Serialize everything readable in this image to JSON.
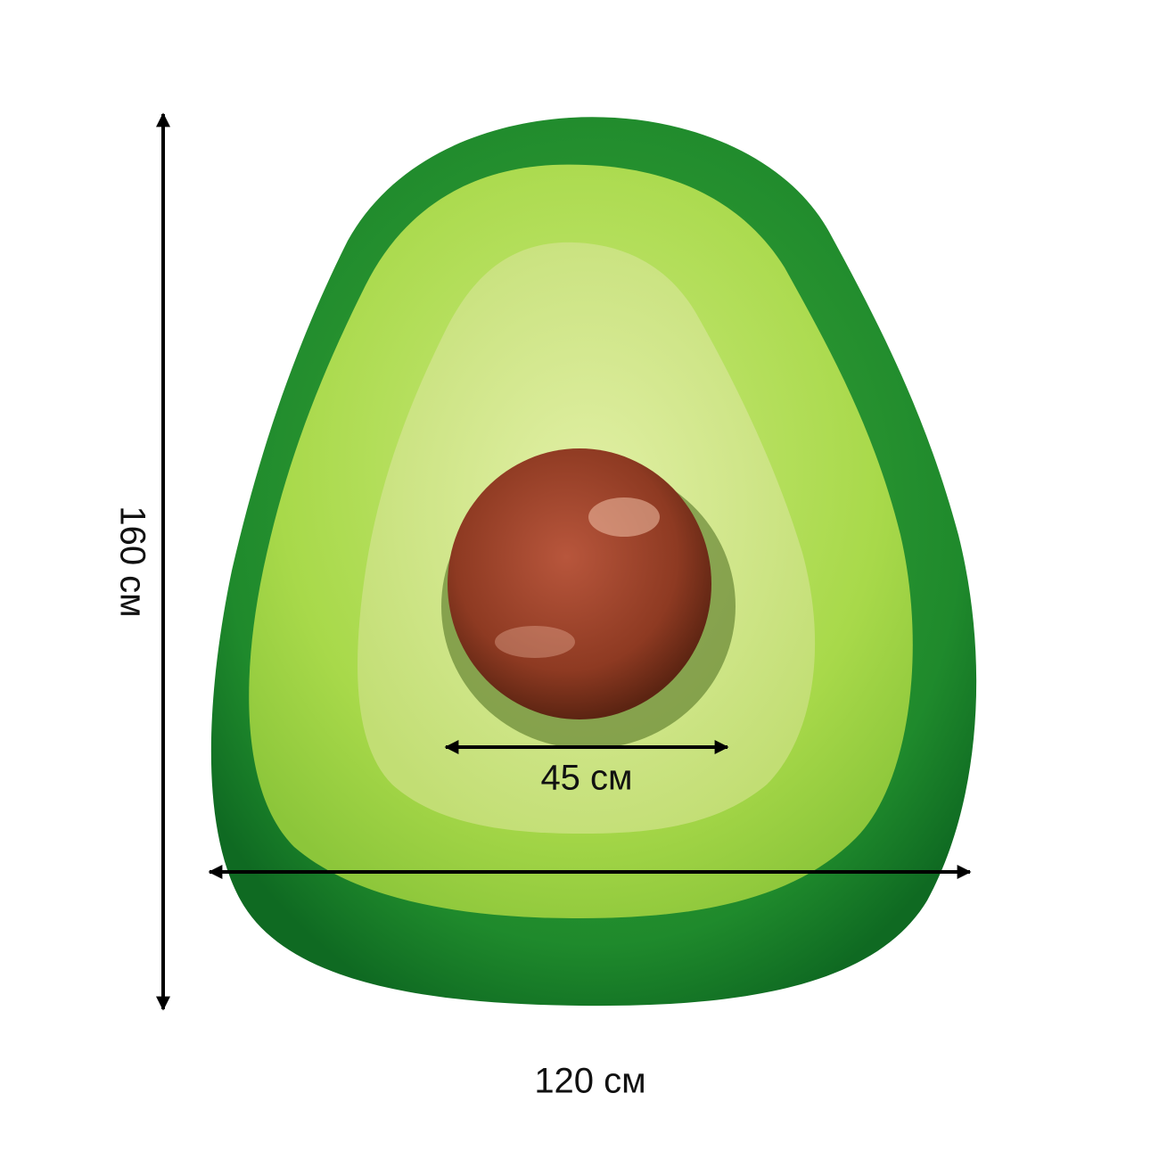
{
  "dimensions": {
    "height": "160 см",
    "pit_width": "45 см",
    "width": "120 см"
  }
}
